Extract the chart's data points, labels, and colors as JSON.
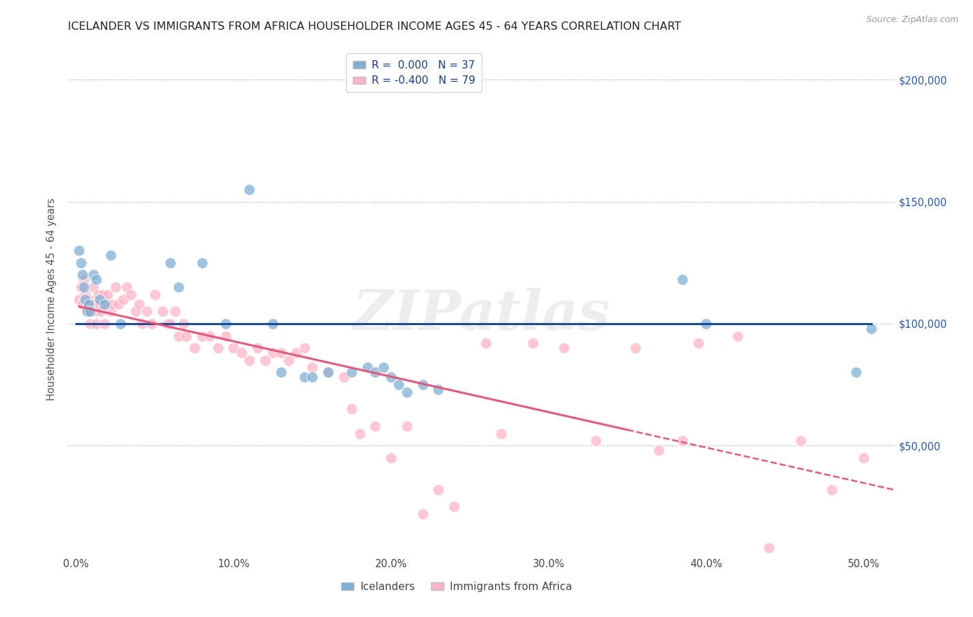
{
  "title": "ICELANDER VS IMMIGRANTS FROM AFRICA HOUSEHOLDER INCOME AGES 45 - 64 YEARS CORRELATION CHART",
  "source": "Source: ZipAtlas.com",
  "ylabel": "Householder Income Ages 45 - 64 years",
  "xlim": [
    -0.005,
    0.52
  ],
  "ylim": [
    5000,
    215000
  ],
  "legend_label1": "Icelanders",
  "legend_label2": "Immigrants from Africa",
  "r1": " 0.000",
  "n1": "37",
  "r2": "-0.400",
  "n2": "79",
  "blue_color": "#7EB0D5",
  "pink_color": "#FFB3C6",
  "blue_line_color": "#1A4A9B",
  "pink_line_color": "#E8567A",
  "watermark": "ZIPatlas",
  "ytick_vals": [
    50000,
    100000,
    150000,
    200000
  ],
  "ytick_labels": [
    "$50,000",
    "$100,000",
    "$150,000",
    "$200,000"
  ],
  "xtick_vals": [
    0.0,
    0.1,
    0.2,
    0.3,
    0.4,
    0.5
  ],
  "xtick_labels": [
    "0.0%",
    "10.0%",
    "20.0%",
    "30.0%",
    "40.0%",
    "50.0%"
  ],
  "blue_x": [
    0.002,
    0.003,
    0.004,
    0.005,
    0.006,
    0.007,
    0.008,
    0.009,
    0.011,
    0.013,
    0.015,
    0.018,
    0.022,
    0.028,
    0.06,
    0.065,
    0.08,
    0.095,
    0.11,
    0.125,
    0.13,
    0.145,
    0.15,
    0.16,
    0.175,
    0.185,
    0.19,
    0.195,
    0.2,
    0.205,
    0.21,
    0.22,
    0.23,
    0.385,
    0.4,
    0.495,
    0.505
  ],
  "blue_y": [
    130000,
    125000,
    120000,
    115000,
    110000,
    105000,
    108000,
    105000,
    120000,
    118000,
    110000,
    108000,
    128000,
    100000,
    125000,
    115000,
    125000,
    100000,
    155000,
    100000,
    80000,
    78000,
    78000,
    80000,
    80000,
    82000,
    80000,
    82000,
    78000,
    75000,
    72000,
    75000,
    73000,
    118000,
    100000,
    80000,
    98000
  ],
  "pink_x": [
    0.002,
    0.003,
    0.004,
    0.005,
    0.006,
    0.007,
    0.008,
    0.009,
    0.01,
    0.011,
    0.012,
    0.013,
    0.014,
    0.015,
    0.016,
    0.017,
    0.018,
    0.019,
    0.02,
    0.022,
    0.023,
    0.025,
    0.027,
    0.03,
    0.032,
    0.035,
    0.038,
    0.04,
    0.042,
    0.045,
    0.048,
    0.05,
    0.055,
    0.058,
    0.06,
    0.063,
    0.065,
    0.068,
    0.07,
    0.075,
    0.08,
    0.085,
    0.09,
    0.095,
    0.1,
    0.105,
    0.11,
    0.115,
    0.12,
    0.125,
    0.13,
    0.135,
    0.14,
    0.145,
    0.15,
    0.16,
    0.17,
    0.175,
    0.18,
    0.19,
    0.2,
    0.21,
    0.22,
    0.23,
    0.24,
    0.26,
    0.27,
    0.29,
    0.31,
    0.33,
    0.355,
    0.37,
    0.385,
    0.395,
    0.42,
    0.44,
    0.46,
    0.48,
    0.5
  ],
  "pink_y": [
    110000,
    115000,
    108000,
    118000,
    112000,
    105000,
    110000,
    100000,
    108000,
    115000,
    105000,
    100000,
    112000,
    108000,
    105000,
    112000,
    100000,
    108000,
    112000,
    105000,
    108000,
    115000,
    108000,
    110000,
    115000,
    112000,
    105000,
    108000,
    100000,
    105000,
    100000,
    112000,
    105000,
    100000,
    100000,
    105000,
    95000,
    100000,
    95000,
    90000,
    95000,
    95000,
    90000,
    95000,
    90000,
    88000,
    85000,
    90000,
    85000,
    88000,
    88000,
    85000,
    88000,
    90000,
    82000,
    80000,
    78000,
    65000,
    55000,
    58000,
    45000,
    58000,
    22000,
    32000,
    25000,
    92000,
    55000,
    92000,
    90000,
    52000,
    90000,
    48000,
    52000,
    92000,
    95000,
    8000,
    52000,
    32000,
    45000
  ]
}
